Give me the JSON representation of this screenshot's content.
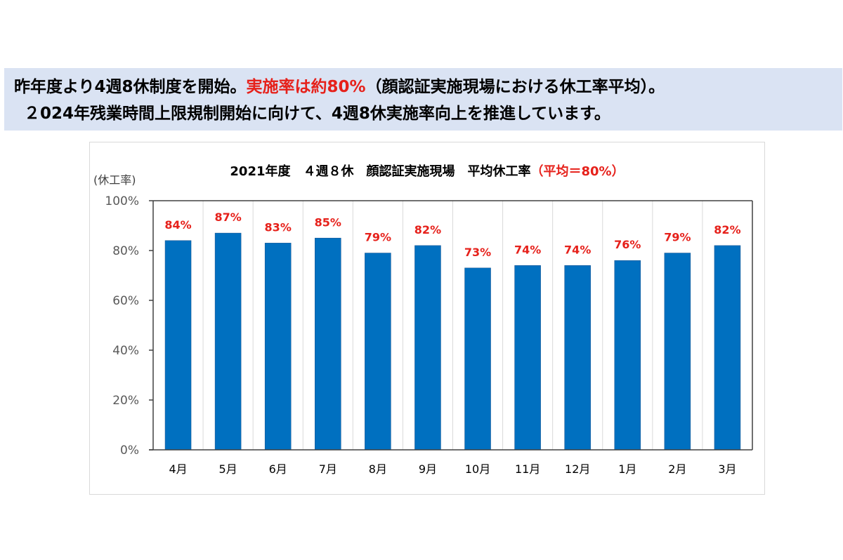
{
  "banner": {
    "line1_prefix": "昨年度より4週8休制度を開始。",
    "line1_highlight": "実施率は約80%",
    "line1_suffix": "（顔認証実施現場における休工率平均）。",
    "line2": "２024年残業時間上限規制開始に向けて、4週8休実施率向上を推進しています。"
  },
  "colors": {
    "bar": "#0070c0",
    "highlight": "#e6211b",
    "banner_background": "#dae3f3",
    "tick_text": "#595959"
  },
  "chart_data": {
    "type": "bar",
    "title": "2021年度　４週８休　顔認証実施現場　平均休工率",
    "title_highlight": "（平均＝80%）",
    "ylabel": "(休工率)",
    "xlabel": "",
    "categories": [
      "4月",
      "5月",
      "6月",
      "7月",
      "8月",
      "9月",
      "10月",
      "11月",
      "12月",
      "1月",
      "2月",
      "3月"
    ],
    "values": [
      84,
      87,
      83,
      85,
      79,
      82,
      73,
      74,
      74,
      76,
      79,
      82
    ],
    "data_labels": [
      "84%",
      "87%",
      "83%",
      "85%",
      "79%",
      "82%",
      "73%",
      "74%",
      "74%",
      "76%",
      "79%",
      "82%"
    ],
    "ylim": [
      0,
      100
    ],
    "yticks": [
      0,
      20,
      40,
      60,
      80,
      100
    ],
    "ytick_labels": [
      "0%",
      "20%",
      "40%",
      "60%",
      "80%",
      "100%"
    ],
    "grid": "vertical category separators",
    "legend": "none"
  }
}
